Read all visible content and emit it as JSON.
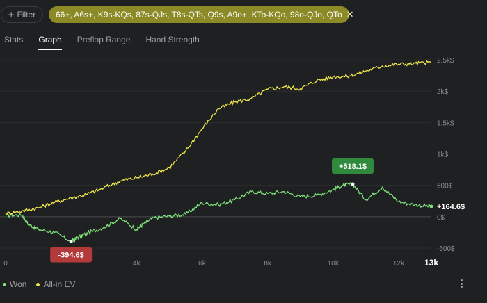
{
  "toolbar": {
    "filter_label": "Filter",
    "range_chip": "66+, A6s+, K9s-KQs, 87s-QJs, T8s-QTs, Q9s, A9o+, KTo-KQo, 98o-QJo, QTo",
    "close_glyph": "✕"
  },
  "tabs": [
    {
      "label": "Stats",
      "active": false
    },
    {
      "label": "Graph",
      "active": true
    },
    {
      "label": "Preflop Range",
      "active": false
    },
    {
      "label": "Hand Strength",
      "active": false
    }
  ],
  "legend": [
    {
      "label": "Won",
      "color": "#7ee07a"
    },
    {
      "label": "All-in EV",
      "color": "#f0e74a"
    }
  ],
  "colors": {
    "won": "#7ee07a",
    "ev": "#f0e74a",
    "max_badge": "#2f8a3e",
    "min_badge": "#b33a3a",
    "grid": "#2c2d2e",
    "zero_line": "#4a4b4c"
  },
  "chart_data": {
    "type": "line",
    "x_ticks": [
      {
        "value": 0,
        "label": "0"
      },
      {
        "value": 4000,
        "label": "4k"
      },
      {
        "value": 6000,
        "label": "6k"
      },
      {
        "value": 8000,
        "label": "8k"
      },
      {
        "value": 10000,
        "label": "10k"
      },
      {
        "value": 12000,
        "label": "12k"
      },
      {
        "value": 13000,
        "label": "13k"
      }
    ],
    "y_ticks": [
      {
        "value": -500,
        "label": "-500$"
      },
      {
        "value": 0,
        "label": "0$"
      },
      {
        "value": 500,
        "label": "500$"
      },
      {
        "value": 1000,
        "label": "1k$"
      },
      {
        "value": 1500,
        "label": "1.5k$"
      },
      {
        "value": 2000,
        "label": "2k$"
      },
      {
        "value": 2500,
        "label": "2.5k$"
      }
    ],
    "xlim": [
      0,
      13000
    ],
    "ylim": [
      -500,
      2500
    ],
    "series": [
      {
        "name": "Won",
        "color": "#7ee07a",
        "x": [
          0,
          500,
          700,
          1000,
          1500,
          2000,
          2200,
          2500,
          3000,
          3500,
          4000,
          4200,
          4500,
          5000,
          5500,
          6000,
          6500,
          7000,
          7500,
          8000,
          8500,
          9000,
          9500,
          10000,
          10300,
          10600,
          11000,
          11500,
          12000,
          12500,
          13000
        ],
        "y": [
          20,
          30,
          -120,
          -200,
          -250,
          -395,
          -330,
          -260,
          -170,
          -30,
          -200,
          -120,
          -20,
          10,
          40,
          220,
          190,
          270,
          400,
          370,
          400,
          320,
          340,
          430,
          500,
          518,
          270,
          470,
          240,
          190,
          164.6
        ]
      },
      {
        "name": "All-in EV",
        "color": "#f0e74a",
        "x": [
          0,
          500,
          1000,
          1500,
          2000,
          2500,
          3000,
          3500,
          4000,
          4500,
          5000,
          5500,
          6000,
          6500,
          7000,
          7500,
          8000,
          8500,
          9000,
          9500,
          10000,
          10500,
          11000,
          11500,
          12000,
          12500,
          13000
        ],
        "y": [
          50,
          90,
          140,
          230,
          300,
          360,
          460,
          570,
          620,
          680,
          780,
          1050,
          1400,
          1720,
          1830,
          1880,
          2030,
          2070,
          2040,
          2170,
          2230,
          2240,
          2320,
          2400,
          2430,
          2440,
          2460
        ]
      }
    ],
    "annotations": [
      {
        "series": "Won",
        "x": 10600,
        "y": 518.1,
        "label": "+518.1$",
        "kind": "max"
      },
      {
        "series": "Won",
        "x": 2000,
        "y": -394.6,
        "label": "-394.6$",
        "kind": "min"
      },
      {
        "series": "Won",
        "x": 13000,
        "y": 164.6,
        "label": "+164.6$",
        "kind": "last"
      }
    ]
  }
}
